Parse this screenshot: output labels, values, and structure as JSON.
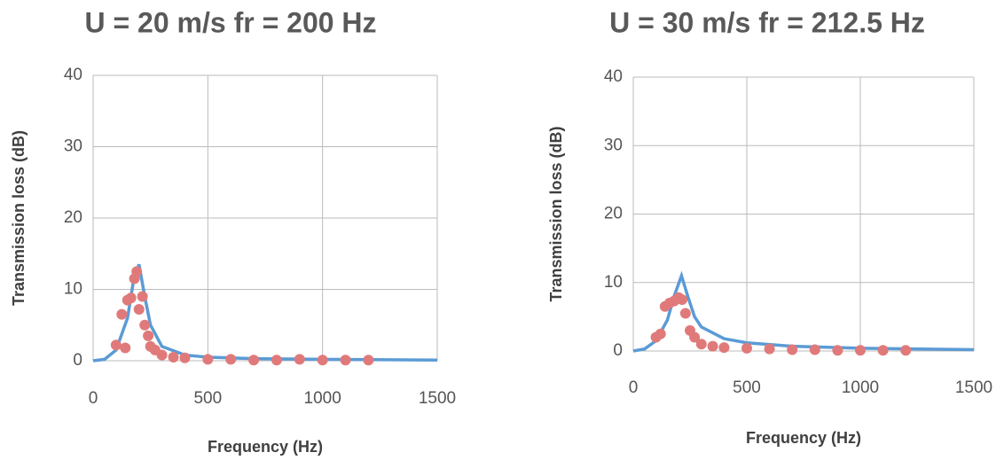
{
  "chart_data": [
    {
      "type": "line",
      "title": "U = 20 m/s  fr = 200 Hz",
      "x_label": "Frequency (Hz)",
      "y_label": "Transmission loss (dB)",
      "xlim": [
        0,
        1500
      ],
      "xticks": [
        0,
        500,
        1000,
        1500
      ],
      "ylim": [
        0,
        40
      ],
      "yticks": [
        0,
        10,
        20,
        30,
        40
      ],
      "grid": true,
      "series": [
        {
          "style": "line",
          "color": "#5b9bd5",
          "x": [
            0,
            50,
            100,
            150,
            175,
            200,
            225,
            250,
            300,
            400,
            500,
            700,
            1000,
            1500
          ],
          "values": [
            0,
            0.2,
            1.5,
            6,
            11,
            13.5,
            9,
            5,
            2,
            0.8,
            0.5,
            0.3,
            0.2,
            0.1
          ]
        },
        {
          "style": "points",
          "color": "#e07a7a",
          "x": [
            100,
            125,
            140,
            150,
            165,
            180,
            190,
            200,
            215,
            225,
            240,
            250,
            270,
            300,
            350,
            400,
            500,
            600,
            700,
            800,
            900,
            1000,
            1100,
            1200
          ],
          "values": [
            2.2,
            6.5,
            1.8,
            8.5,
            8.8,
            11.5,
            12.5,
            7.2,
            9,
            5,
            3.5,
            2,
            1.5,
            0.8,
            0.5,
            0.4,
            0.2,
            0.2,
            0.1,
            0.1,
            0.2,
            0.1,
            0.1,
            0.1
          ]
        }
      ]
    },
    {
      "type": "line",
      "title": "U = 30 m/s  fr = 212.5 Hz",
      "x_label": "Frequency (Hz)",
      "y_label": "Transmission loss (dB)",
      "xlim": [
        0,
        1500
      ],
      "xticks": [
        0,
        500,
        1000,
        1500
      ],
      "ylim": [
        0,
        40
      ],
      "yticks": [
        0,
        10,
        20,
        30,
        40
      ],
      "grid": true,
      "series": [
        {
          "style": "line",
          "color": "#5b9bd5",
          "x": [
            0,
            50,
            100,
            150,
            180,
            212.5,
            240,
            270,
            300,
            400,
            500,
            700,
            1000,
            1500
          ],
          "values": [
            0,
            0.3,
            1.5,
            4.5,
            8,
            11,
            8,
            5,
            3.5,
            1.8,
            1.2,
            0.7,
            0.4,
            0.2
          ]
        },
        {
          "style": "points",
          "color": "#e07a7a",
          "x": [
            100,
            120,
            140,
            160,
            180,
            200,
            215,
            230,
            250,
            270,
            300,
            350,
            400,
            500,
            600,
            700,
            800,
            900,
            1000,
            1100,
            1200
          ],
          "values": [
            2,
            2.5,
            6.5,
            7,
            7.3,
            7.8,
            7.5,
            5.5,
            3,
            2,
            1,
            0.7,
            0.5,
            0.4,
            0.3,
            0.2,
            0.2,
            0.1,
            0.1,
            0.1,
            0.1
          ]
        }
      ]
    }
  ]
}
